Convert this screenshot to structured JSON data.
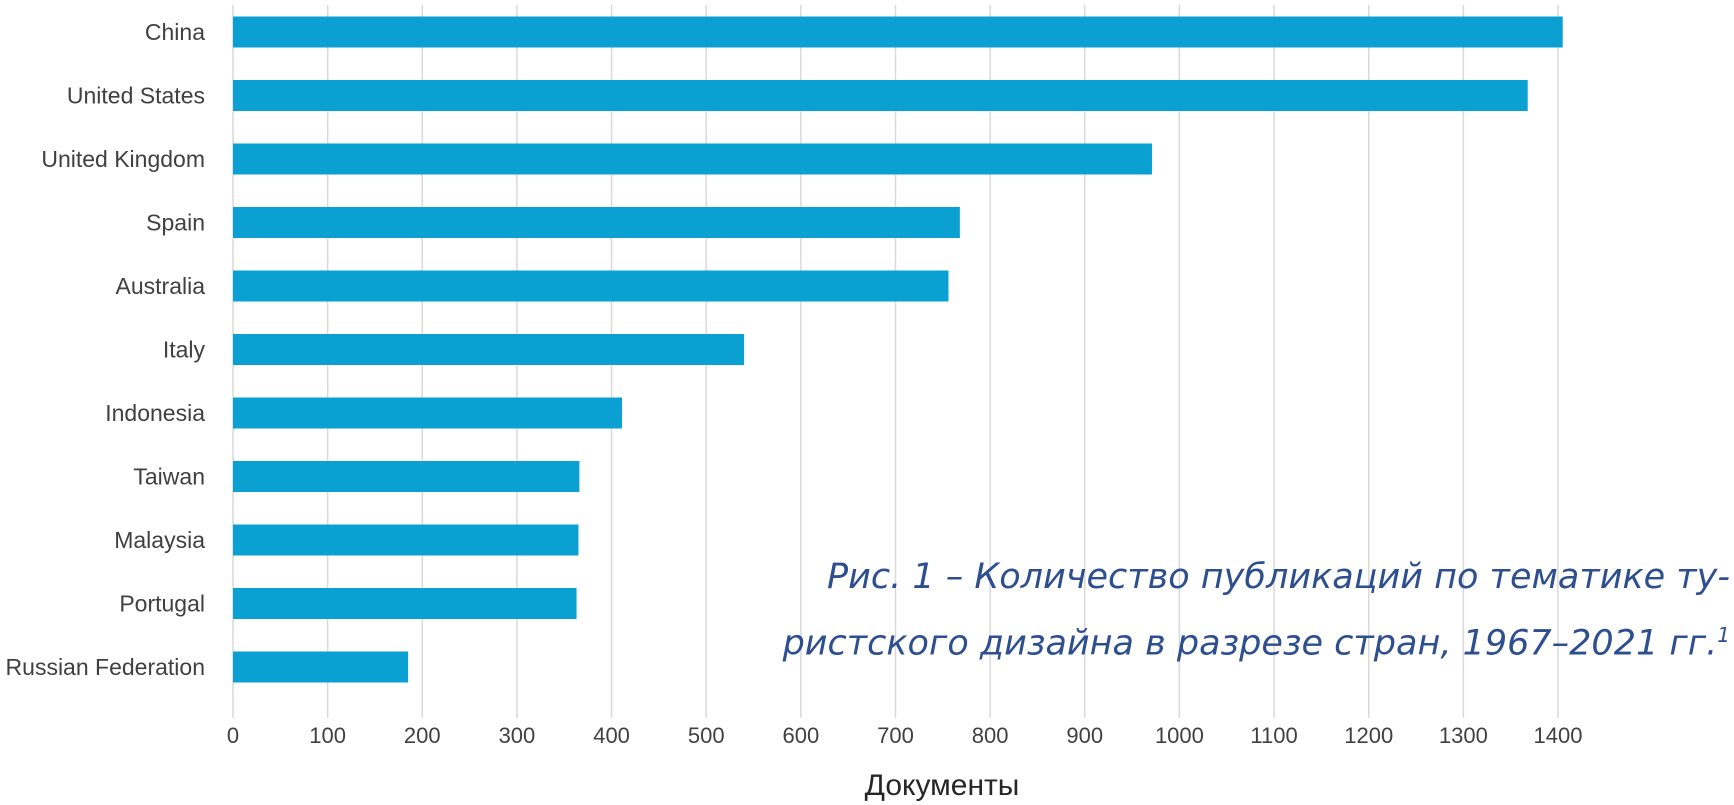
{
  "chart_data": {
    "type": "bar",
    "orientation": "horizontal",
    "categories": [
      "China",
      "United States",
      "United Kingdom",
      "Spain",
      "Australia",
      "Italy",
      "Indonesia",
      "Taiwan",
      "Malaysia",
      "Portugal",
      "Russian Federation"
    ],
    "values": [
      1405,
      1368,
      971,
      768,
      756,
      540,
      411,
      366,
      365,
      363,
      185
    ],
    "xticks": [
      "0",
      "100",
      "200",
      "300",
      "400",
      "500",
      "600",
      "700",
      "800",
      "900",
      "1000",
      "1100",
      "1200",
      "1300",
      "1400"
    ],
    "xlim": [
      0,
      1400
    ],
    "xlabel": "Документы",
    "grid": "vertical",
    "bar_color": "#0aa0d2"
  },
  "caption": {
    "line1": "Рис. 1 – Количество публикаций по тематике ту-",
    "line2": "ристского дизайна в разрезе стран, 1967–2021 гг.",
    "footnote_mark": "1"
  }
}
